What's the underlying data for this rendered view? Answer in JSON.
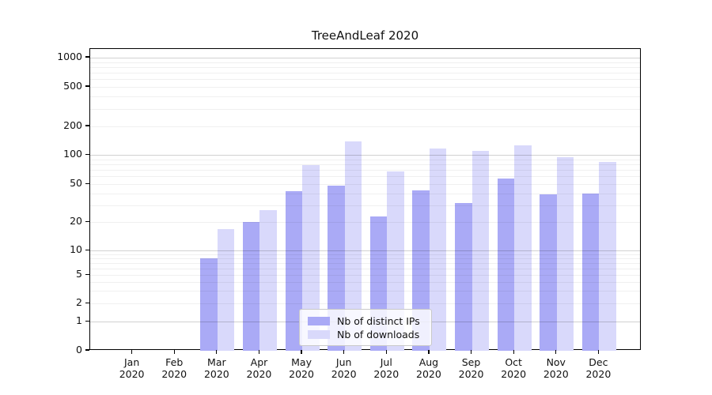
{
  "chart_data": {
    "type": "bar",
    "title": "TreeAndLeaf 2020",
    "year_label": "2020",
    "categories": [
      "Jan",
      "Feb",
      "Mar",
      "Apr",
      "May",
      "Jun",
      "Jul",
      "Aug",
      "Sep",
      "Oct",
      "Nov",
      "Dec"
    ],
    "series": [
      {
        "name": "Nb of distinct IPs",
        "color": "#aaaaf6",
        "values": [
          0,
          0,
          8,
          20,
          42,
          48,
          23,
          43,
          32,
          57,
          39,
          40
        ]
      },
      {
        "name": "Nb of downloads",
        "color": "#d9d9fb",
        "values": [
          0,
          0,
          17,
          27,
          78,
          140,
          68,
          117,
          110,
          127,
          95,
          85
        ]
      }
    ],
    "y_ticks": [
      0,
      1,
      2,
      5,
      10,
      20,
      50,
      100,
      200,
      500,
      1000
    ],
    "y_scale": "symlog",
    "ylim": [
      0,
      1250
    ],
    "xlabel": "",
    "ylabel": "",
    "grid": true,
    "legend_position": "lower center"
  }
}
